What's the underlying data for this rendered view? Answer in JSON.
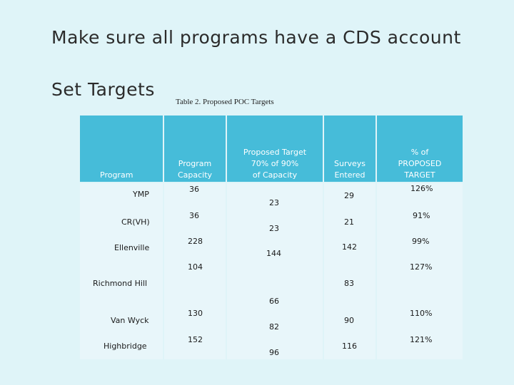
{
  "bullets": [
    {
      "text": "Make sure all programs have a CDS account",
      "icon": "arrow-bullet-icon"
    },
    {
      "text": "Set Targets",
      "icon": "arrow-bullet-icon"
    }
  ],
  "bullet_glyph": "",
  "caption": "Table 2. Proposed POC Targets",
  "table": {
    "headers": {
      "program": "Program",
      "capacity": "Program\nCapacity",
      "target": "Proposed Target\n70% of 90%\nof Capacity",
      "surveys": "Surveys\nEntered",
      "percent": "% of\nPROPOSED\nTARGET"
    },
    "rows": [
      {
        "program": "YMP",
        "capacity": "36",
        "target": "23",
        "surveys": "29",
        "percent": "126%"
      },
      {
        "program": "CR(VH)",
        "capacity": "36",
        "target": "23",
        "surveys": "21",
        "percent": "91%"
      },
      {
        "program": "Ellenville",
        "capacity": "228",
        "target": "144",
        "surveys": "142",
        "percent": "99%"
      },
      {
        "program": "Richmond Hill",
        "capacity": "104",
        "target": "66",
        "surveys": "83",
        "percent": "127%"
      },
      {
        "program": "Van Wyck",
        "capacity": "130",
        "target": "82",
        "surveys": "90",
        "percent": "110%"
      },
      {
        "program": "Highbridge",
        "capacity": "152",
        "target": "96",
        "surveys": "116",
        "percent": "121%"
      }
    ]
  }
}
